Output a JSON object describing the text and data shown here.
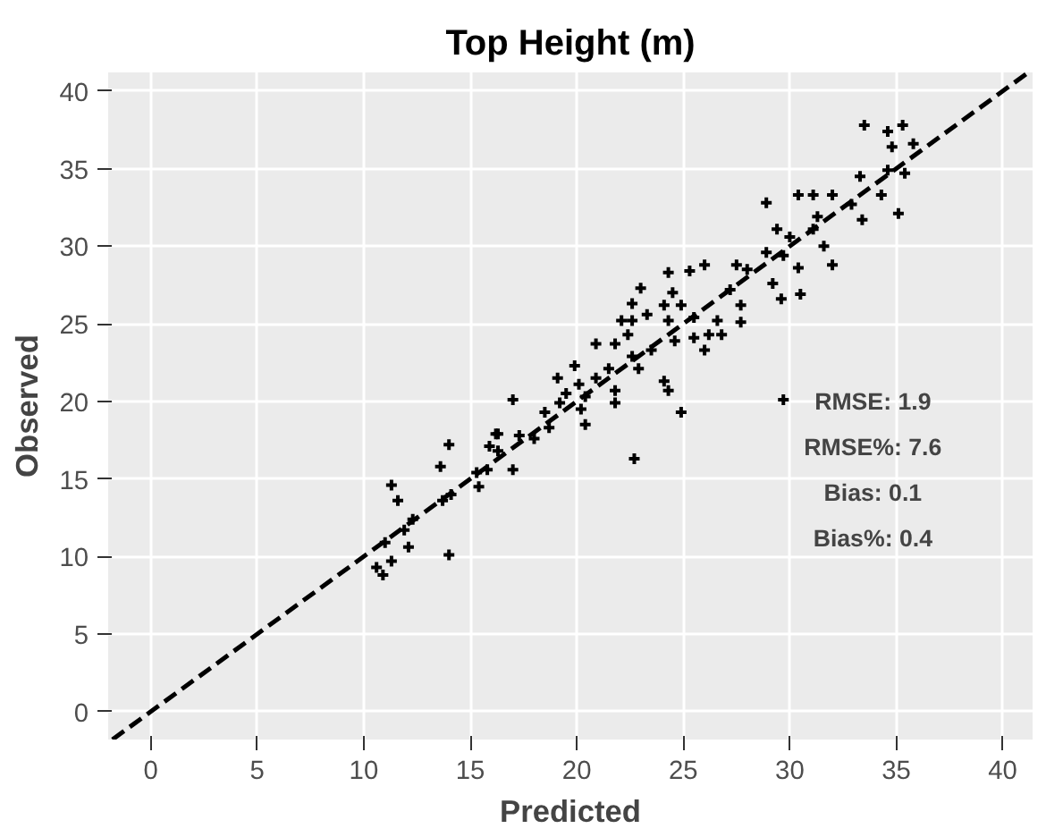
{
  "chart_data": {
    "type": "scatter",
    "title": "Top Height (m)",
    "xlabel": "Predicted",
    "ylabel": "Observed",
    "xlim": [
      -2,
      41.4
    ],
    "ylim": [
      -1.8,
      41.2
    ],
    "xticks": [
      0,
      5,
      10,
      15,
      20,
      25,
      30,
      35,
      40
    ],
    "yticks": [
      0,
      5,
      10,
      15,
      20,
      25,
      30,
      35,
      40
    ],
    "grid": true,
    "marker": "cross",
    "annotations": [
      "RMSE: 1.9",
      "RMSE%: 7.6",
      "Bias: 0.1",
      "Bias%: 0.4"
    ],
    "series": [
      {
        "type": "line",
        "line_style": "dashed",
        "marker": "none",
        "color": "#000000",
        "x": [
          -1.8,
          41.2
        ],
        "values": [
          -1.8,
          41.2
        ]
      },
      {
        "color": "#000000",
        "x": [
          33.5,
          34.6,
          35.3,
          34.8,
          35.8,
          34.6,
          35.4,
          33.3,
          34.3,
          35.1,
          33.4,
          32.9,
          31.1,
          30.4,
          32,
          28.9,
          31.3,
          31.1,
          29.4,
          30,
          28.9,
          29.7,
          31.6,
          32,
          30.4,
          29.2,
          29.6,
          30.5,
          27.5,
          28,
          27.2,
          27.7,
          27.7,
          26,
          25.3,
          24.3,
          24.5,
          23,
          22.6,
          24.1,
          24.9,
          25.5,
          24.3,
          26.6,
          23.3,
          22.1,
          22.6,
          25.5,
          26.2,
          26.8,
          24.6,
          26,
          23.5,
          22.6,
          21.8,
          20.9,
          22.4,
          19.9,
          21.5,
          22.9,
          24.1,
          24.3,
          19.1,
          20.9,
          21.8,
          20.1,
          19.5,
          20.4,
          19.2,
          20.2,
          20.4,
          18.5,
          17,
          18,
          17.3,
          16.3,
          18.7,
          21.8,
          24.9,
          29.7,
          22.7,
          16.2,
          15.9,
          16.3,
          14,
          13.6,
          17,
          15.4,
          15.8,
          11.3,
          11.6,
          13.7,
          14.1,
          11.9,
          12.3,
          12.1,
          11,
          14,
          10.6,
          11.3,
          10.9,
          15.3
        ],
        "values": [
          37.8,
          37.4,
          37.8,
          36.4,
          36.6,
          34.9,
          34.7,
          34.5,
          33.3,
          32.1,
          31.7,
          32.7,
          33.3,
          33.3,
          33.3,
          32.8,
          31.9,
          31.1,
          31.1,
          30.6,
          29.6,
          29.4,
          30,
          28.8,
          28.6,
          27.6,
          26.6,
          26.9,
          28.8,
          28.5,
          27.2,
          26.2,
          25.1,
          28.8,
          28.4,
          28.3,
          27,
          27.3,
          26.3,
          26.2,
          26.2,
          25.4,
          25.2,
          25.2,
          25.6,
          25.2,
          25.2,
          24.1,
          24.3,
          24.3,
          23.9,
          23.3,
          23.3,
          22.9,
          23.7,
          23.7,
          24.3,
          22.3,
          22.1,
          22.1,
          21.3,
          20.7,
          21.5,
          21.5,
          20.7,
          21.1,
          20.5,
          20.3,
          19.9,
          19.5,
          18.5,
          19.3,
          20.1,
          17.6,
          17.8,
          17.9,
          18.3,
          19.9,
          19.3,
          20.1,
          16.3,
          17.9,
          17.1,
          16.8,
          17.2,
          15.8,
          15.6,
          14.5,
          15.6,
          14.6,
          13.6,
          13.6,
          14,
          11.7,
          12.4,
          10.6,
          10.9,
          10.1,
          9.3,
          9.7,
          8.8,
          15.4
        ]
      }
    ]
  }
}
